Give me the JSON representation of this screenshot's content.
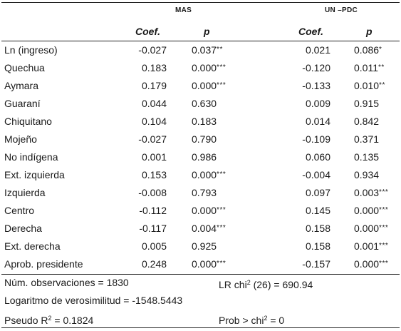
{
  "groups": {
    "mas": "MAS",
    "un_pdc": "UN –PDC"
  },
  "headers": {
    "coef": "Coef.",
    "p": "p"
  },
  "rows": [
    {
      "label": "Ln (ingreso)",
      "mas_coef": "-0.027",
      "mas_p": "0.037",
      "mas_star": "**",
      "un_coef": "0.021",
      "un_p": "0.086",
      "un_star": "*"
    },
    {
      "label": "Quechua",
      "mas_coef": "0.183",
      "mas_p": "0.000",
      "mas_star": "***",
      "un_coef": "-0.120",
      "un_p": "0.011",
      "un_star": "**"
    },
    {
      "label": "Aymara",
      "mas_coef": "0.179",
      "mas_p": "0.000",
      "mas_star": "***",
      "un_coef": "-0.133",
      "un_p": "0.010",
      "un_star": "**"
    },
    {
      "label": "Guaraní",
      "mas_coef": "0.044",
      "mas_p": "0.630",
      "mas_star": "",
      "un_coef": "0.009",
      "un_p": "0.915",
      "un_star": ""
    },
    {
      "label": "Chiquitano",
      "mas_coef": "0.104",
      "mas_p": "0.183",
      "mas_star": "",
      "un_coef": "0.014",
      "un_p": "0.842",
      "un_star": ""
    },
    {
      "label": "Mojeño",
      "mas_coef": "-0.027",
      "mas_p": "0.790",
      "mas_star": "",
      "un_coef": "-0.109",
      "un_p": "0.371",
      "un_star": ""
    },
    {
      "label": "No indígena",
      "mas_coef": "0.001",
      "mas_p": "0.986",
      "mas_star": "",
      "un_coef": "0.060",
      "un_p": "0.135",
      "un_star": ""
    },
    {
      "label": "Ext. izquierda",
      "mas_coef": "0.153",
      "mas_p": "0.000",
      "mas_star": "***",
      "un_coef": "-0.004",
      "un_p": "0.934",
      "un_star": ""
    },
    {
      "label": "Izquierda",
      "mas_coef": "-0.008",
      "mas_p": "0.793",
      "mas_star": "",
      "un_coef": "0.097",
      "un_p": "0.003",
      "un_star": "***"
    },
    {
      "label": "Centro",
      "mas_coef": "-0.112",
      "mas_p": "0.000",
      "mas_star": "***",
      "un_coef": "0.145",
      "un_p": "0.000",
      "un_star": "***"
    },
    {
      "label": "Derecha",
      "mas_coef": "-0.117",
      "mas_p": "0.004",
      "mas_star": "***",
      "un_coef": "0.158",
      "un_p": "0.000",
      "un_star": "***"
    },
    {
      "label": "Ext. derecha",
      "mas_coef": "0.005",
      "mas_p": "0.925",
      "mas_star": "",
      "un_coef": "0.158",
      "un_p": "0.001",
      "un_star": "***"
    },
    {
      "label": "Aprob. presidente",
      "mas_coef": "0.248",
      "mas_p": "0.000",
      "mas_star": "***",
      "un_coef": "-0.157",
      "un_p": "0.000",
      "un_star": "***"
    }
  ],
  "stats": {
    "observations": "Núm. observaciones = 1830",
    "lr_prefix": "LR chi",
    "lr_sup": "2",
    "lr_suffix": " (26) = 690.94",
    "loglik": "Logaritmo de verosimilitud = -1548.5443",
    "pseudo_prefix": "Pseudo R",
    "pseudo_sup": "2",
    "pseudo_suffix": " = 0.1824",
    "prob_prefix": "Prob > chi",
    "prob_sup": "2",
    "prob_suffix": " = 0"
  }
}
